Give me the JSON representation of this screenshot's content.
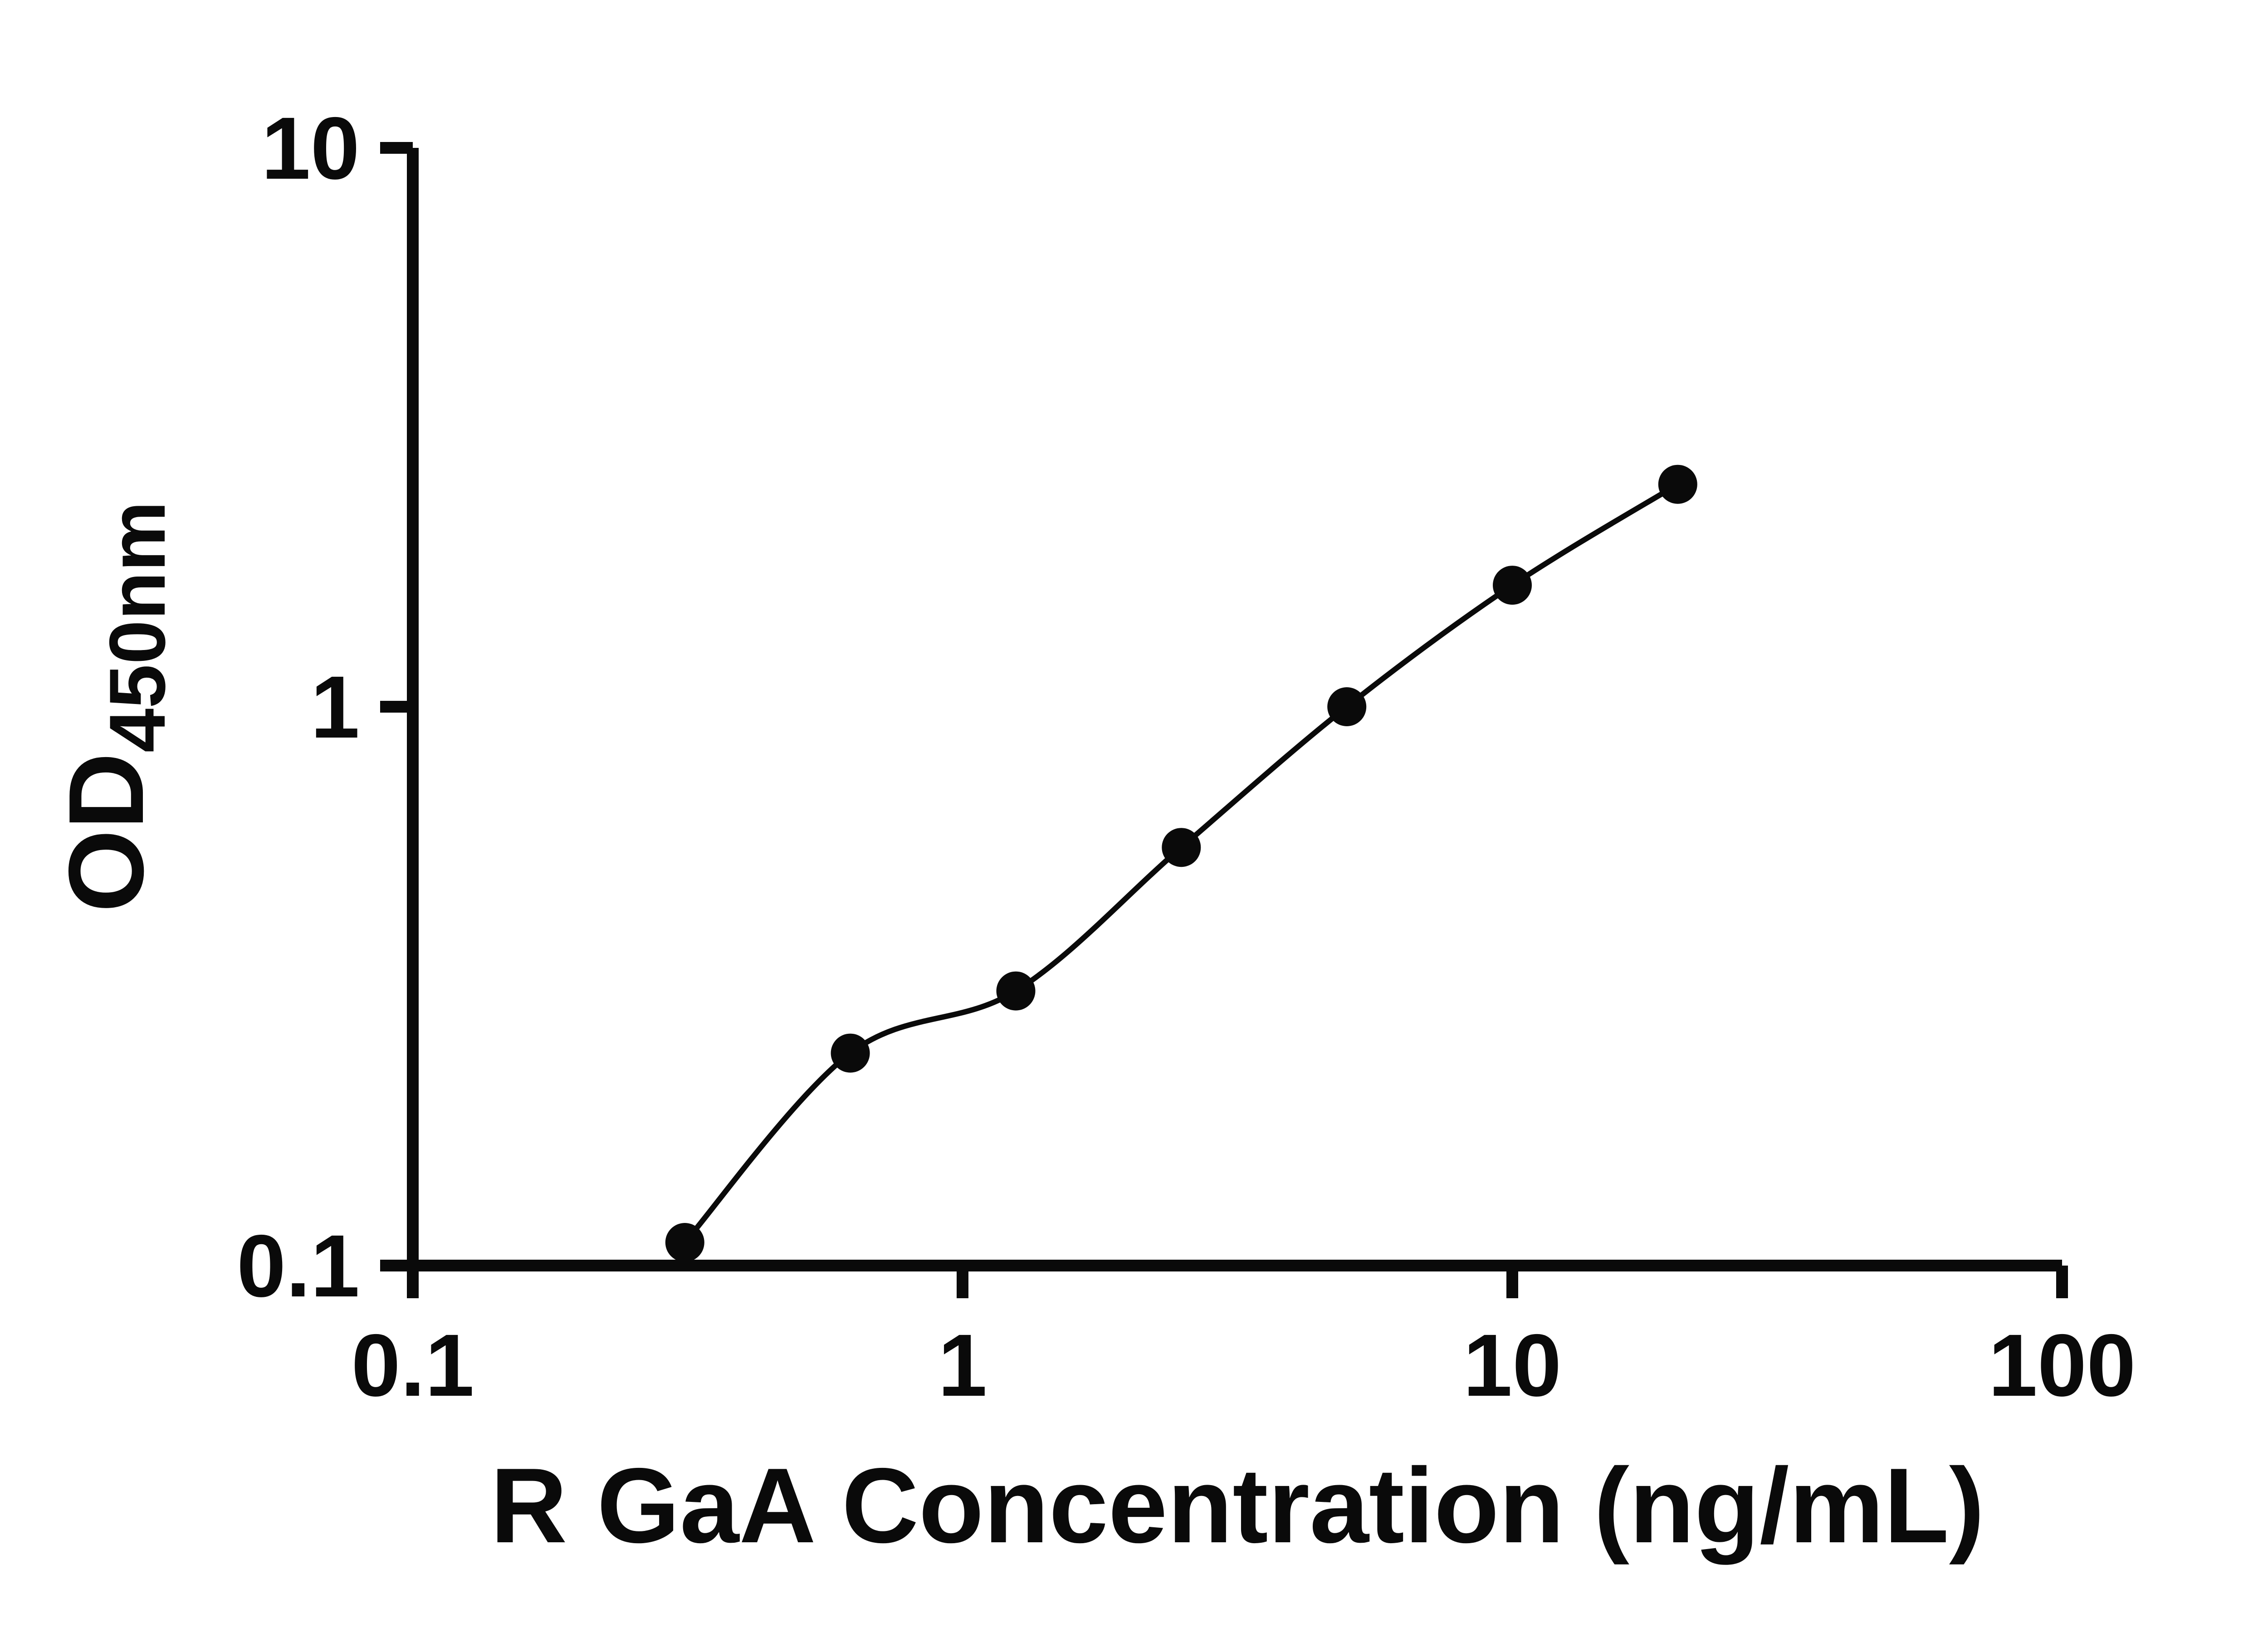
{
  "figure": {
    "description": "ELISA standard curve, log-log scatter plot with fitted trend line"
  },
  "chart_data": {
    "type": "scatter",
    "title": "",
    "xlabel": "R GaA Concentration (ng/mL)",
    "ylabel": "OD450nm",
    "ylabel_main": "OD",
    "ylabel_sub": "450nm",
    "xscale": "log",
    "yscale": "log",
    "xlim": [
      0.1,
      100
    ],
    "ylim": [
      0.1,
      10
    ],
    "x": [
      0.3125,
      0.625,
      1.25,
      2.5,
      5,
      10,
      20
    ],
    "y": [
      0.11,
      0.24,
      0.31,
      0.56,
      1.0,
      1.65,
      2.5
    ],
    "x_ticks": [
      {
        "value": 0.1,
        "label": "0.1"
      },
      {
        "value": 1,
        "label": "1"
      },
      {
        "value": 10,
        "label": "10"
      },
      {
        "value": 100,
        "label": "100"
      }
    ],
    "y_ticks": [
      {
        "value": 0.1,
        "label": "0.1"
      },
      {
        "value": 1,
        "label": "1"
      },
      {
        "value": 10,
        "label": "10"
      }
    ],
    "trendline": true,
    "grid": false,
    "legend": "none",
    "marker_color": "#0a0a0a",
    "line_color": "#0a0a0a",
    "axis_color": "#0a0a0a"
  }
}
